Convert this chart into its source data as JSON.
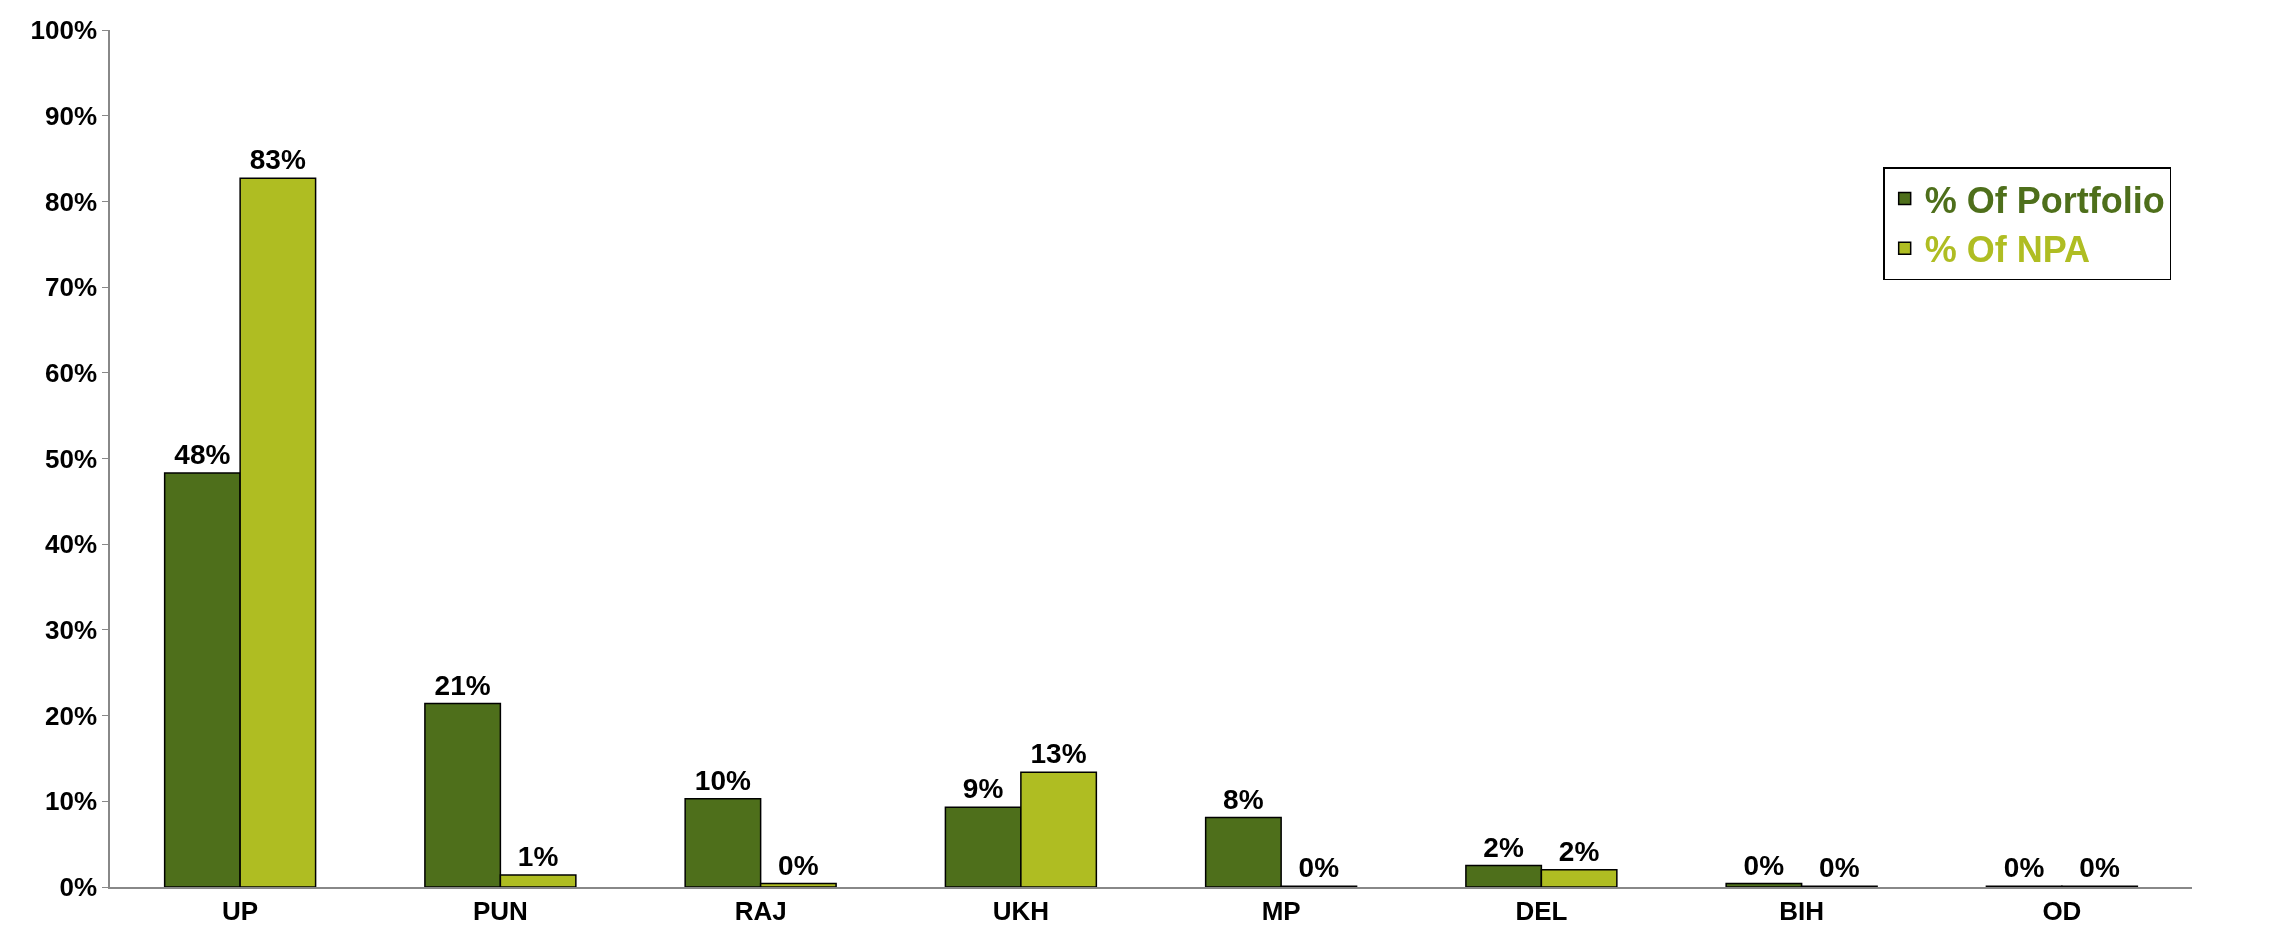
{
  "chart_data": {
    "type": "bar",
    "categories": [
      "UP",
      "PUN",
      "RAJ",
      "UKH",
      "MP",
      "DEL",
      "BIH",
      "OD"
    ],
    "series": [
      {
        "name": "% Of Portfolio",
        "color": "#4e6f1b",
        "values": [
          48.3,
          21.4,
          10.3,
          9.3,
          8.1,
          2.5,
          0.4,
          0.1
        ],
        "value_labels": [
          "48%",
          "21%",
          "10%",
          "9%",
          "8%",
          "2%",
          "0%",
          "0%"
        ]
      },
      {
        "name": "% Of NPA",
        "color": "#afbd22",
        "values": [
          82.7,
          1.4,
          0.4,
          13.4,
          0.1,
          2.0,
          0.1,
          0.1
        ],
        "value_labels": [
          "83%",
          "1%",
          "0%",
          "13%",
          "0%",
          "2%",
          "0%",
          "0%"
        ]
      }
    ],
    "ylim": [
      0,
      100
    ],
    "yticks": [
      {
        "value": 0,
        "label": "0%"
      },
      {
        "value": 10,
        "label": "10%"
      },
      {
        "value": 20,
        "label": "20%"
      },
      {
        "value": 30,
        "label": "30%"
      },
      {
        "value": 40,
        "label": "40%"
      },
      {
        "value": 50,
        "label": "50%"
      },
      {
        "value": 60,
        "label": "60%"
      },
      {
        "value": 70,
        "label": "70%"
      },
      {
        "value": 80,
        "label": "80%"
      },
      {
        "value": 90,
        "label": "90%"
      },
      {
        "value": 100,
        "label": "100%"
      }
    ],
    "grid": false,
    "legend": "top right"
  }
}
